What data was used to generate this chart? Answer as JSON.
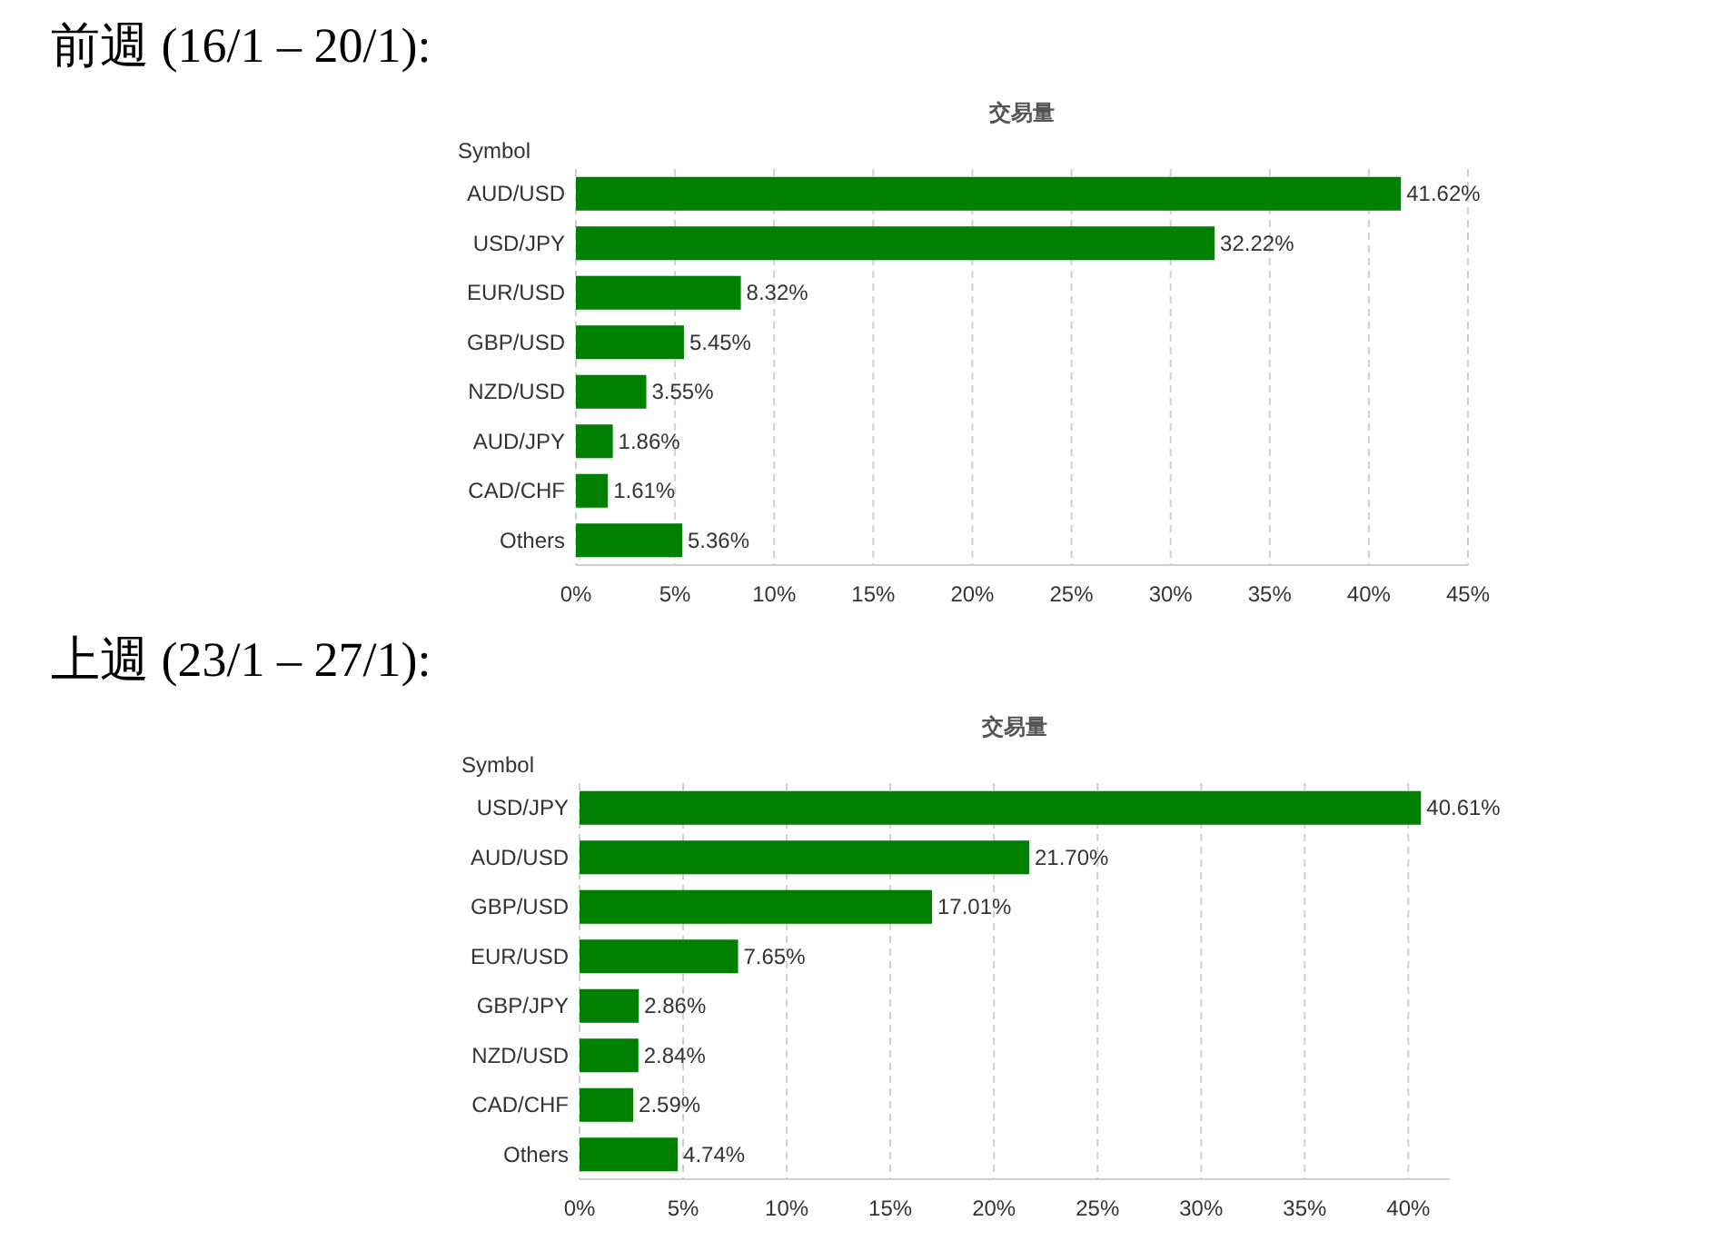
{
  "chart_data": [
    {
      "type": "bar",
      "orientation": "horizontal",
      "title": "前週 (16/1 – 20/1):",
      "subtitle": "交易量",
      "ylabel": "Symbol",
      "categories": [
        "AUD/USD",
        "USD/JPY",
        "EUR/USD",
        "GBP/USD",
        "NZD/USD",
        "AUD/JPY",
        "CAD/CHF",
        "Others"
      ],
      "values": [
        41.62,
        32.22,
        8.32,
        5.45,
        3.55,
        1.86,
        1.61,
        5.36
      ],
      "value_labels": [
        "41.62%",
        "32.22%",
        "8.32%",
        "5.45%",
        "3.55%",
        "1.86%",
        "1.61%",
        "5.36%"
      ],
      "color": "#008000",
      "xlim": [
        0,
        45
      ],
      "xticks": [
        {
          "value": 0,
          "label": "0%"
        },
        {
          "value": 5,
          "label": "5%"
        },
        {
          "value": 10,
          "label": "10%"
        },
        {
          "value": 15,
          "label": "15%"
        },
        {
          "value": 20,
          "label": "20%"
        },
        {
          "value": 25,
          "label": "25%"
        },
        {
          "value": 30,
          "label": "30%"
        },
        {
          "value": 35,
          "label": "35%"
        },
        {
          "value": 40,
          "label": "40%"
        },
        {
          "value": 45,
          "label": "45%"
        }
      ],
      "grid": "x"
    },
    {
      "type": "bar",
      "orientation": "horizontal",
      "title": "上週 (23/1 – 27/1):",
      "subtitle": "交易量",
      "ylabel": "Symbol",
      "categories": [
        "USD/JPY",
        "AUD/USD",
        "GBP/USD",
        "EUR/USD",
        "GBP/JPY",
        "NZD/USD",
        "CAD/CHF",
        "Others"
      ],
      "values": [
        40.61,
        21.7,
        17.01,
        7.65,
        2.86,
        2.84,
        2.59,
        4.74
      ],
      "value_labels": [
        "40.61%",
        "21.70%",
        "17.01%",
        "7.65%",
        "2.86%",
        "2.84%",
        "2.59%",
        "4.74%"
      ],
      "color": "#008000",
      "xlim": [
        0,
        42
      ],
      "xticks": [
        {
          "value": 0,
          "label": "0%"
        },
        {
          "value": 5,
          "label": "5%"
        },
        {
          "value": 10,
          "label": "10%"
        },
        {
          "value": 15,
          "label": "15%"
        },
        {
          "value": 20,
          "label": "20%"
        },
        {
          "value": 25,
          "label": "25%"
        },
        {
          "value": 30,
          "label": "30%"
        },
        {
          "value": 35,
          "label": "35%"
        },
        {
          "value": 40,
          "label": "40%"
        }
      ],
      "grid": "x"
    }
  ]
}
